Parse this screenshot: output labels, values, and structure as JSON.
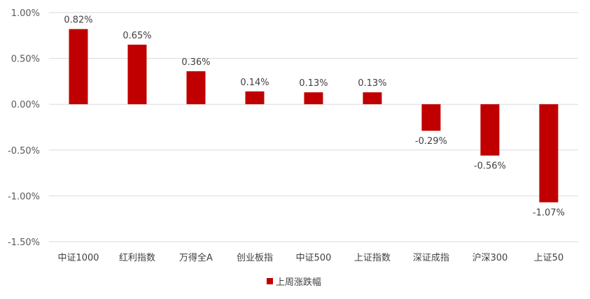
{
  "chart_data": {
    "type": "bar",
    "categories": [
      "中证1000",
      "红利指数",
      "万得全A",
      "创业板指",
      "中证500",
      "上证指数",
      "深证成指",
      "沪深300",
      "上证50"
    ],
    "series": [
      {
        "name": "上周涨跌幅",
        "values": [
          0.82,
          0.65,
          0.36,
          0.14,
          0.13,
          0.13,
          -0.29,
          -0.56,
          -1.07
        ],
        "data_labels": [
          "0.82%",
          "0.65%",
          "0.36%",
          "0.14%",
          "0.13%",
          "0.13%",
          "-0.29%",
          "-0.56%",
          "-1.07%"
        ],
        "color": "#C00000"
      }
    ],
    "ylim": [
      -1.5,
      1.0
    ],
    "yticks": [
      1.0,
      0.5,
      0.0,
      -0.5,
      -1.0,
      -1.5
    ],
    "ytick_labels": [
      "1.00%",
      "0.50%",
      "0.00%",
      "-0.50%",
      "-1.00%",
      "-1.50%"
    ],
    "grid": true,
    "legend_position": "bottom",
    "colors": {
      "bar": "#C00000",
      "grid": "#D9D9D9"
    }
  }
}
